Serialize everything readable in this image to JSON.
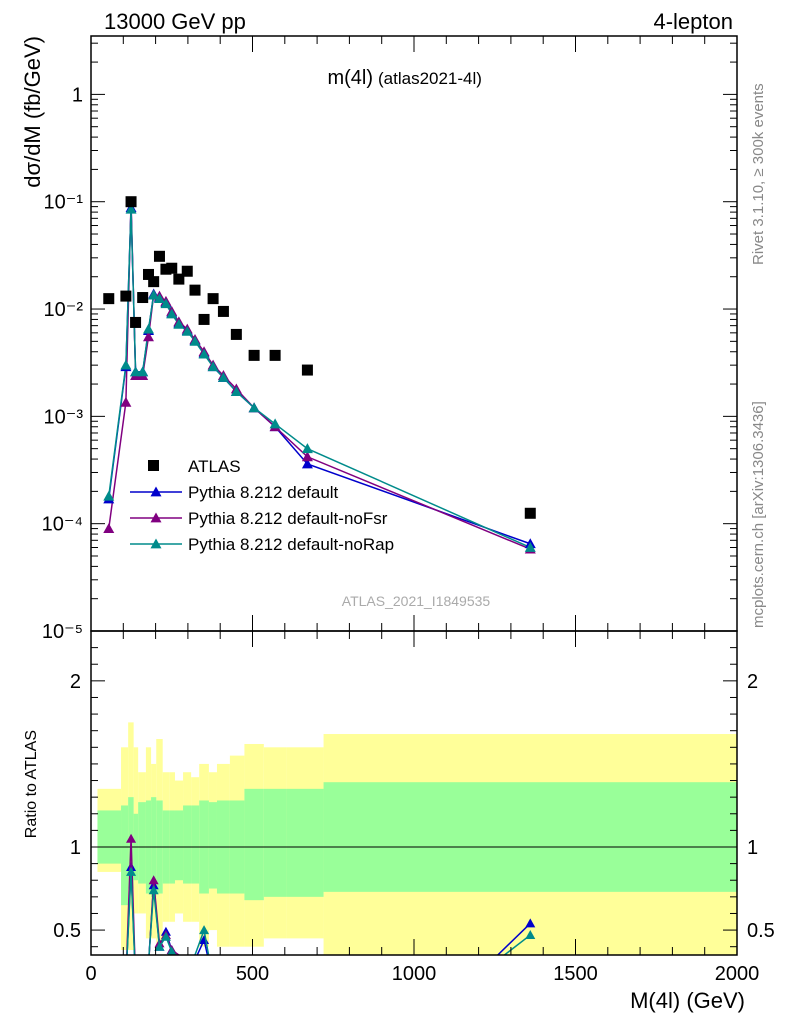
{
  "header": {
    "left": "13000 GeV pp",
    "right": "4-lepton"
  },
  "side_text": {
    "rivet": "Rivet 3.1.10, ≥ 300k events",
    "mcplots": "mcplots.cern.ch [arXiv:1306.3436]"
  },
  "chart_data": [
    {
      "type": "scatter",
      "title": "m(4l)",
      "subtitle": "(atlas2021-4l)",
      "watermark": "ATLAS_2021_I1849535",
      "ylabel": "dσ/dM (fb/GeV)",
      "yscale": "log",
      "ylim": [
        1e-05,
        3.5
      ],
      "xlim": [
        0,
        2000
      ],
      "y_ticks": [
        {
          "value": 1,
          "label": "1"
        },
        {
          "value": 0.1,
          "label": "10⁻¹"
        },
        {
          "value": 0.01,
          "label": "10⁻²"
        },
        {
          "value": 0.001,
          "label": "10⁻³"
        },
        {
          "value": 0.0001,
          "label": "10⁻⁴"
        },
        {
          "value": 1e-05,
          "label": "10⁻⁵"
        }
      ],
      "legend_position": "lower-left",
      "series": [
        {
          "name": "ATLAS",
          "color": "#000000",
          "marker": "square",
          "x": [
            55,
            108,
            124,
            138,
            160,
            178,
            194,
            212,
            232,
            250,
            272,
            298,
            322,
            350,
            378,
            410,
            450,
            505,
            570,
            670,
            1360
          ],
          "y": [
            0.0125,
            0.0132,
            0.1,
            0.0075,
            0.0128,
            0.021,
            0.018,
            0.031,
            0.0235,
            0.024,
            0.019,
            0.0225,
            0.015,
            0.008,
            0.0125,
            0.0095,
            0.0058,
            0.0037,
            0.0037,
            0.0027,
            0.000125
          ]
        },
        {
          "name": "Pythia 8.212 default",
          "color": "#0000cc",
          "marker": "triangle",
          "x": [
            55,
            108,
            124,
            138,
            160,
            178,
            194,
            212,
            232,
            250,
            272,
            298,
            322,
            350,
            378,
            410,
            450,
            505,
            570,
            670,
            1360
          ],
          "y": [
            0.00017,
            0.0029,
            0.088,
            0.0026,
            0.0026,
            0.0063,
            0.0138,
            0.0128,
            0.0115,
            0.0092,
            0.0074,
            0.0063,
            0.0051,
            0.0039,
            0.0029,
            0.0023,
            0.0017,
            0.0012,
            0.0008,
            0.00036,
            6.5e-05
          ]
        },
        {
          "name": "Pythia 8.212 default-noFsr",
          "color": "#800080",
          "marker": "triangle",
          "x": [
            55,
            108,
            124,
            138,
            160,
            178,
            194,
            212,
            232,
            250,
            272,
            298,
            322,
            350,
            378,
            410,
            450,
            505,
            570,
            670,
            1360
          ],
          "y": [
            9e-05,
            0.00135,
            0.1,
            0.0024,
            0.0024,
            0.0055,
            0.0135,
            0.0132,
            0.0118,
            0.0095,
            0.0076,
            0.0065,
            0.0052,
            0.004,
            0.003,
            0.0024,
            0.0018,
            0.0012,
            0.0008,
            0.00042,
            5.8e-05
          ]
        },
        {
          "name": "Pythia 8.212 default-noRap",
          "color": "#008b8b",
          "marker": "triangle",
          "x": [
            55,
            108,
            124,
            138,
            160,
            178,
            194,
            212,
            232,
            250,
            272,
            298,
            322,
            350,
            378,
            410,
            450,
            505,
            570,
            670,
            1360
          ],
          "y": [
            0.00018,
            0.003,
            0.085,
            0.0026,
            0.0026,
            0.0065,
            0.0135,
            0.0125,
            0.0112,
            0.009,
            0.0072,
            0.0062,
            0.005,
            0.0038,
            0.0029,
            0.0023,
            0.0017,
            0.0012,
            0.00085,
            0.0005,
            6e-05
          ]
        }
      ]
    },
    {
      "type": "line",
      "ylabel": "Ratio to ATLAS",
      "xlabel": "M(4l) (GeV)",
      "xlim": [
        0,
        2000
      ],
      "ylim": [
        0.35,
        2.3
      ],
      "x_ticks": [
        0,
        500,
        1000,
        1500,
        2000
      ],
      "y_ticks": [
        0.5,
        1,
        2
      ],
      "bands": [
        {
          "x0": 20,
          "x1": 93,
          "yellow": [
            0.85,
            1.35
          ],
          "green": [
            0.9,
            1.22
          ]
        },
        {
          "x0": 93,
          "x1": 115,
          "yellow": [
            0.38,
            1.6
          ],
          "green": [
            0.65,
            1.25
          ]
        },
        {
          "x0": 115,
          "x1": 132,
          "yellow": [
            0.38,
            1.75
          ],
          "green": [
            0.75,
            1.3
          ]
        },
        {
          "x0": 132,
          "x1": 146,
          "yellow": [
            0.6,
            1.6
          ],
          "green": [
            0.8,
            1.2
          ]
        },
        {
          "x0": 146,
          "x1": 170,
          "yellow": [
            0.6,
            1.45
          ],
          "green": [
            0.78,
            1.27
          ]
        },
        {
          "x0": 170,
          "x1": 186,
          "yellow": [
            0.45,
            1.6
          ],
          "green": [
            0.72,
            1.28
          ]
        },
        {
          "x0": 186,
          "x1": 202,
          "yellow": [
            0.45,
            1.5
          ],
          "green": [
            0.7,
            1.3
          ]
        },
        {
          "x0": 202,
          "x1": 222,
          "yellow": [
            0.4,
            1.65
          ],
          "green": [
            0.72,
            1.28
          ]
        },
        {
          "x0": 222,
          "x1": 242,
          "yellow": [
            0.55,
            1.45
          ],
          "green": [
            0.78,
            1.22
          ]
        },
        {
          "x0": 242,
          "x1": 260,
          "yellow": [
            0.55,
            1.45
          ],
          "green": [
            0.78,
            1.22
          ]
        },
        {
          "x0": 260,
          "x1": 285,
          "yellow": [
            0.6,
            1.4
          ],
          "green": [
            0.8,
            1.22
          ]
        },
        {
          "x0": 285,
          "x1": 310,
          "yellow": [
            0.55,
            1.45
          ],
          "green": [
            0.78,
            1.25
          ]
        },
        {
          "x0": 310,
          "x1": 335,
          "yellow": [
            0.55,
            1.42
          ],
          "green": [
            0.78,
            1.25
          ]
        },
        {
          "x0": 335,
          "x1": 365,
          "yellow": [
            0.4,
            1.5
          ],
          "green": [
            0.72,
            1.28
          ]
        },
        {
          "x0": 365,
          "x1": 390,
          "yellow": [
            0.5,
            1.45
          ],
          "green": [
            0.75,
            1.27
          ]
        },
        {
          "x0": 390,
          "x1": 430,
          "yellow": [
            0.4,
            1.5
          ],
          "green": [
            0.72,
            1.28
          ]
        },
        {
          "x0": 430,
          "x1": 475,
          "yellow": [
            0.4,
            1.55
          ],
          "green": [
            0.72,
            1.28
          ]
        },
        {
          "x0": 475,
          "x1": 535,
          "yellow": [
            0.4,
            1.62
          ],
          "green": [
            0.68,
            1.35
          ]
        },
        {
          "x0": 535,
          "x1": 605,
          "yellow": [
            0.45,
            1.6
          ],
          "green": [
            0.7,
            1.35
          ]
        },
        {
          "x0": 605,
          "x1": 720,
          "yellow": [
            0.45,
            1.6
          ],
          "green": [
            0.7,
            1.35
          ]
        },
        {
          "x0": 720,
          "x1": 2000,
          "yellow": [
            0.35,
            1.68
          ],
          "green": [
            0.73,
            1.39
          ]
        }
      ],
      "series": [
        {
          "name": "Pythia 8.212 default",
          "color": "#0000cc",
          "x": [
            108,
            124,
            138,
            178,
            194,
            212,
            232,
            250,
            272,
            322,
            350,
            378,
            1180,
            1360
          ],
          "y": [
            0.2,
            0.88,
            0.2,
            0.3,
            0.77,
            0.4,
            0.49,
            0.38,
            0.33,
            0.32,
            0.44,
            0.2,
            0.2,
            0.54
          ]
        },
        {
          "name": "Pythia 8.212 default-noFsr",
          "color": "#800080",
          "x": [
            108,
            124,
            138,
            178,
            194,
            212,
            232,
            250,
            272,
            298
          ],
          "y": [
            0.2,
            1.05,
            0.2,
            0.28,
            0.8,
            0.42,
            0.47,
            0.38,
            0.35,
            0.2
          ]
        },
        {
          "name": "Pythia 8.212 default-noRap",
          "color": "#008b8b",
          "x": [
            108,
            124,
            138,
            178,
            194,
            212,
            232,
            250,
            272,
            322,
            350,
            378,
            1180,
            1360
          ],
          "y": [
            0.2,
            0.85,
            0.2,
            0.3,
            0.74,
            0.4,
            0.46,
            0.37,
            0.33,
            0.35,
            0.5,
            0.2,
            0.2,
            0.47
          ]
        }
      ]
    }
  ]
}
